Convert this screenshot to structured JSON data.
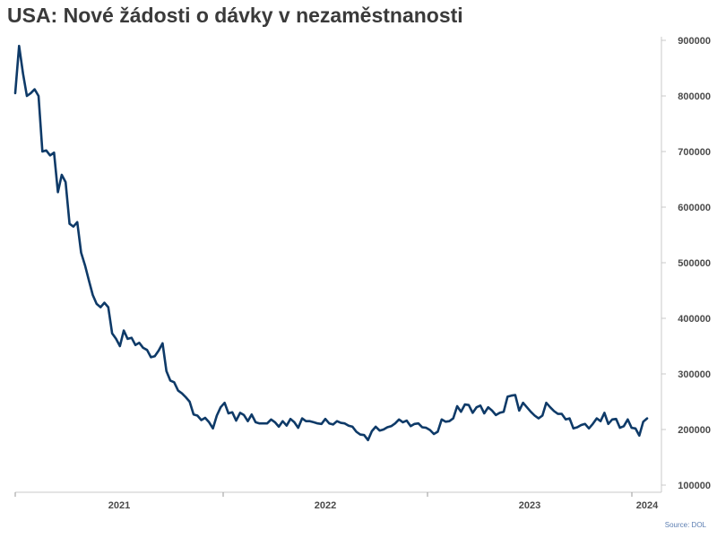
{
  "title": "USA: Nové žádosti o dávky v nezaměstnanosti",
  "source": "Source: DOL",
  "colors": {
    "line": "#0e3a68",
    "axis": "#c8c8c8",
    "text": "#4a4a4a"
  },
  "chart_data": {
    "type": "line",
    "title": "USA: Nové žádosti o dávky v nezaměstnanosti",
    "xlabel": "",
    "ylabel": "",
    "ylim": [
      100000,
      900000
    ],
    "y_ticks": [
      "100000",
      "200000",
      "300000",
      "400000",
      "500000",
      "600000",
      "700000",
      "800000",
      "900000"
    ],
    "x_ticks": [
      "2021",
      "2022",
      "2023",
      "2024"
    ],
    "grid": false,
    "legend": "none",
    "series": [
      {
        "values": [
          805000,
          890000,
          840000,
          800000,
          805000,
          812000,
          800000,
          700000,
          702000,
          693000,
          698000,
          627000,
          658000,
          645000,
          570000,
          565000,
          573000,
          518000,
          495000,
          468000,
          442000,
          426000,
          420000,
          428000,
          420000,
          373000,
          363000,
          350000,
          378000,
          363000,
          365000,
          352000,
          356000,
          347000,
          343000,
          330000,
          332000,
          342000,
          355000,
          305000,
          288000,
          285000,
          270000,
          265000,
          258000,
          250000,
          227000,
          225000,
          217000,
          221000,
          213000,
          202000,
          225000,
          240000,
          248000,
          229000,
          231000,
          216000,
          230000,
          226000,
          215000,
          227000,
          213000,
          211000,
          211000,
          211000,
          218000,
          213000,
          205000,
          215000,
          207000,
          219000,
          213000,
          203000,
          220000,
          215000,
          215000,
          213000,
          211000,
          210000,
          219000,
          211000,
          209000,
          215000,
          212000,
          211000,
          207000,
          205000,
          196000,
          191000,
          190000,
          181000,
          197000,
          205000,
          198000,
          200000,
          204000,
          206000,
          211000,
          218000,
          213000,
          216000,
          206000,
          210000,
          211000,
          204000,
          203000,
          199000,
          192000,
          196000,
          218000,
          214000,
          215000,
          220000,
          242000,
          232000,
          245000,
          244000,
          230000,
          240000,
          243000,
          229000,
          240000,
          234000,
          226000,
          230000,
          232000,
          259000,
          261000,
          262000,
          234000,
          248000,
          240000,
          232000,
          225000,
          220000,
          225000,
          248000,
          240000,
          233000,
          228000,
          228000,
          218000,
          220000,
          202000,
          204000,
          208000,
          210000,
          202000,
          210000,
          220000,
          215000,
          230000,
          210000,
          218000,
          219000,
          203000,
          206000,
          218000,
          203000,
          202000,
          189000,
          214000,
          220000
        ]
      }
    ]
  }
}
